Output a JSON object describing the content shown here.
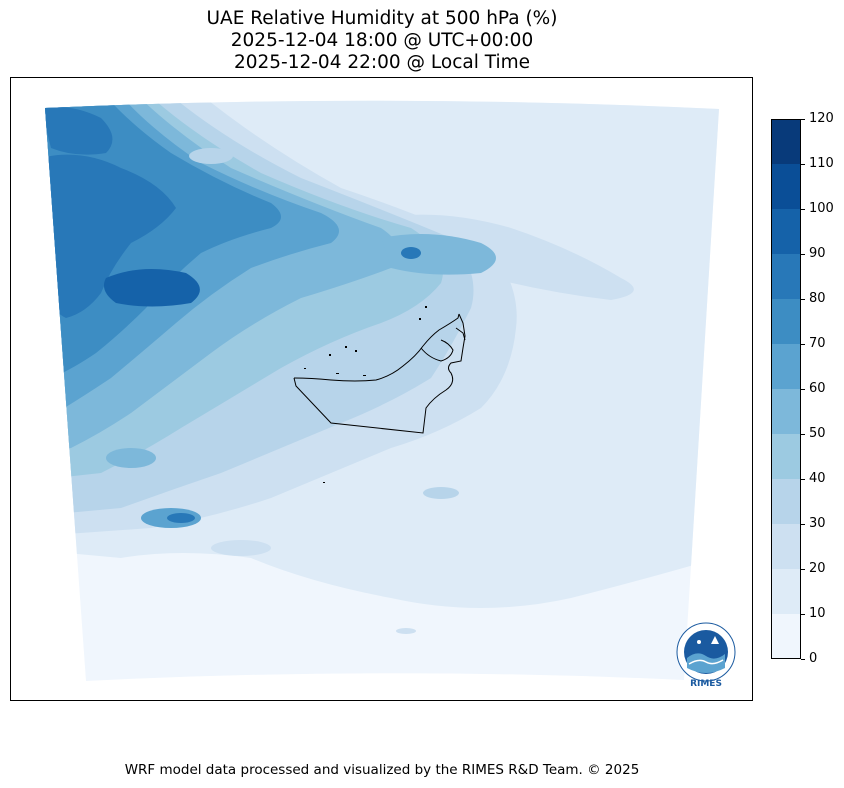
{
  "title": {
    "line1": "UAE Relative Humidity at 500 hPa (%)",
    "line2": "2025-12-04 18:00 @ UTC+00:00",
    "line3": "2025-12-04 22:00 @ Local Time"
  },
  "colorbar": {
    "ticks": [
      "0",
      "10",
      "20",
      "30",
      "40",
      "50",
      "60",
      "70",
      "80",
      "90",
      "100",
      "110",
      "120"
    ],
    "levels": [
      0,
      10,
      20,
      30,
      40,
      50,
      60,
      70,
      80,
      90,
      100,
      110,
      120
    ],
    "colors": [
      "#f0f6fd",
      "#deebf7",
      "#cde0f1",
      "#b7d4ea",
      "#9ccae1",
      "#7db8da",
      "#5ba3d0",
      "#3d8dc3",
      "#2878b8",
      "#1562a9",
      "#0a4e97",
      "#083a7a"
    ]
  },
  "logo": {
    "text": "RIMES",
    "ring_text": "Regional Integrated Multi-Hazard Early Warning System",
    "icon": "rimes-logo-icon"
  },
  "footer": {
    "credit": "WRF model data processed and visualized by the RIMES R&D Team. © 2025"
  }
}
